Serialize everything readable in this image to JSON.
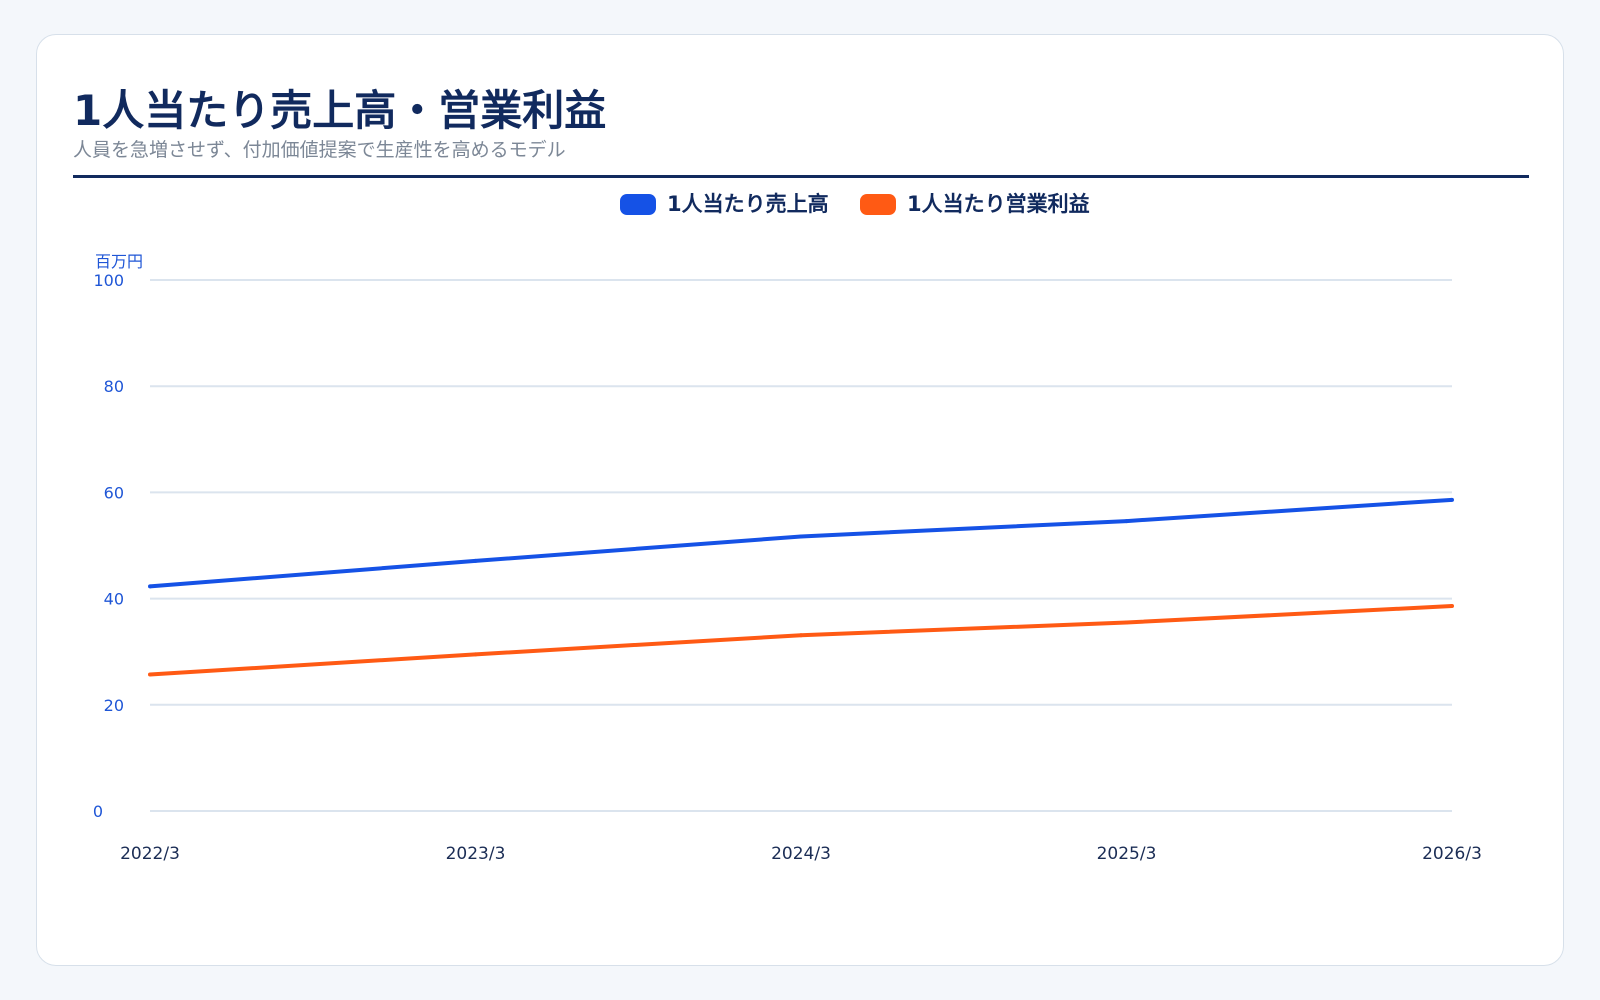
{
  "header": {
    "title": "1人当たり売上高・営業利益",
    "subtitle": "人員を急増させず、付加価値提案で生産性を高めるモデル"
  },
  "colors": {
    "sales": "#1552e6",
    "profit": "#ff5a14",
    "accent": "#112a5e",
    "grid": "#dbe4ee"
  },
  "chart_data": {
    "type": "line",
    "title": "",
    "xlabel": "",
    "ylabel": "百万円",
    "categories": [
      "2022/3",
      "2023/3",
      "2024/3",
      "2025/3",
      "2026/3"
    ],
    "ylim": [
      0,
      100
    ],
    "yticks": [
      0,
      20,
      40,
      60,
      80,
      100
    ],
    "grid": true,
    "legend_position": "top-center",
    "series": [
      {
        "name": "1人当たり売上高",
        "values": [
          42.3,
          47.1,
          51.7,
          54.6,
          58.6
        ],
        "color": "#1552e6"
      },
      {
        "name": "1人当たり営業利益",
        "values": [
          25.7,
          29.5,
          33.1,
          35.5,
          38.6
        ],
        "color": "#ff5a14"
      }
    ]
  }
}
